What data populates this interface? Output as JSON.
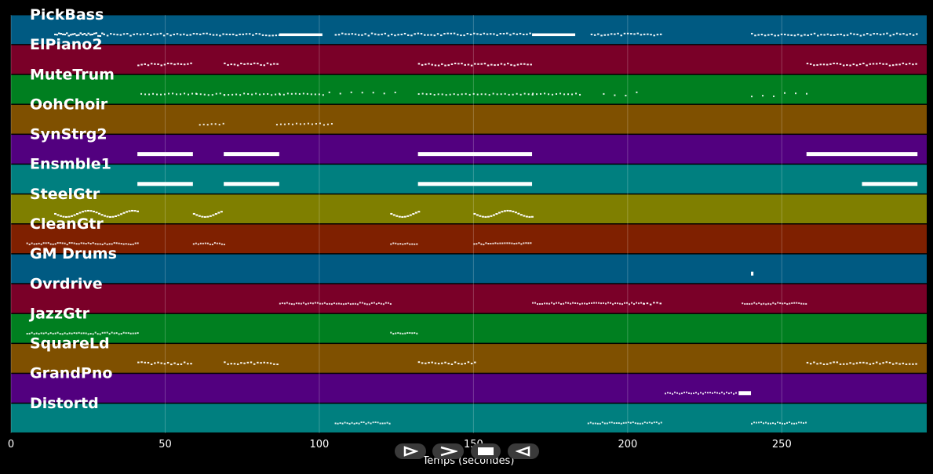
{
  "chart_data": {
    "type": "piano-roll",
    "xlabel": "Temps (secondes)",
    "xlim": [
      0,
      297
    ],
    "xticks": [
      0,
      50,
      100,
      150,
      200,
      250
    ],
    "grid": true,
    "tracks": [
      {
        "name": "PickBass",
        "color": "#005a82",
        "segments": [
          [
            14,
            30,
            "dense"
          ],
          [
            31,
            43,
            "sparse"
          ],
          [
            44,
            60,
            "sparse"
          ],
          [
            60,
            87,
            "sparse"
          ],
          [
            87,
            101,
            "long"
          ],
          [
            105,
            170,
            "sparse"
          ],
          [
            169,
            183,
            "long"
          ],
          [
            188,
            211,
            "sparse"
          ],
          [
            240,
            294,
            "sparse"
          ]
        ]
      },
      {
        "name": "ElPiano2",
        "color": "#7a0028",
        "segments": [
          [
            41,
            59,
            "sparse"
          ],
          [
            69,
            87,
            "sparse"
          ],
          [
            132,
            169,
            "sparse"
          ],
          [
            258,
            294,
            "sparse"
          ]
        ]
      },
      {
        "name": "MuteTrum",
        "color": "#007f20",
        "segments": [
          [
            42,
            60,
            "dots"
          ],
          [
            60,
            69,
            "dots"
          ],
          [
            69,
            87,
            "dots"
          ],
          [
            87,
            102,
            "dots"
          ],
          [
            103,
            125,
            "scatter"
          ],
          [
            132,
            170,
            "dots"
          ],
          [
            169,
            185,
            "dots"
          ],
          [
            192,
            205,
            "scatter"
          ],
          [
            240,
            258,
            "scatter"
          ]
        ]
      },
      {
        "name": "OohChoir",
        "color": "#7f5000",
        "segments": [
          [
            61,
            69,
            "dots"
          ],
          [
            86,
            105,
            "dots"
          ]
        ]
      },
      {
        "name": "SynStrg2",
        "color": "#52007f",
        "segments": [
          [
            41,
            59,
            "block"
          ],
          [
            69,
            87,
            "block"
          ],
          [
            132,
            169,
            "block"
          ],
          [
            258,
            294,
            "block"
          ]
        ]
      },
      {
        "name": "Ensmble1",
        "color": "#007f7f",
        "segments": [
          [
            41,
            59,
            "block"
          ],
          [
            69,
            87,
            "block"
          ],
          [
            132,
            169,
            "block"
          ],
          [
            276,
            294,
            "block"
          ]
        ]
      },
      {
        "name": "SteelGtr",
        "color": "#7f7f00",
        "segments": [
          [
            14,
            41,
            "wave"
          ],
          [
            59,
            68,
            "wave"
          ],
          [
            123,
            132,
            "wave"
          ],
          [
            150,
            169,
            "wave"
          ]
        ]
      },
      {
        "name": "CleanGtr",
        "color": "#7f2000",
        "segments": [
          [
            5,
            41,
            "fine"
          ],
          [
            59,
            69,
            "fine"
          ],
          [
            123,
            132,
            "fine"
          ],
          [
            150,
            169,
            "fine"
          ]
        ]
      },
      {
        "name": "GM Drums",
        "color": "#005a82",
        "segments": [
          [
            240,
            240.8,
            "block"
          ]
        ]
      },
      {
        "name": "Ovrdrive",
        "color": "#7a0028",
        "segments": [
          [
            87,
            123,
            "fine"
          ],
          [
            169,
            205,
            "fine"
          ],
          [
            205,
            211,
            "sparse"
          ],
          [
            237,
            258,
            "fine"
          ]
        ]
      },
      {
        "name": "JazzGtr",
        "color": "#007f20",
        "segments": [
          [
            5,
            41,
            "fine"
          ],
          [
            123,
            132,
            "fine"
          ]
        ]
      },
      {
        "name": "SquareLd",
        "color": "#7f5000",
        "segments": [
          [
            41,
            59,
            "sparse"
          ],
          [
            69,
            87,
            "sparse"
          ],
          [
            132,
            151,
            "sparse"
          ],
          [
            258,
            294,
            "sparse"
          ]
        ]
      },
      {
        "name": "GrandPno",
        "color": "#52007f",
        "segments": [
          [
            212,
            235,
            "fine"
          ],
          [
            236,
            240,
            "block"
          ]
        ]
      },
      {
        "name": "Distortd",
        "color": "#007f7f",
        "segments": [
          [
            105,
            123,
            "fine"
          ],
          [
            187,
            211,
            "fine"
          ],
          [
            240,
            258,
            "fine"
          ]
        ]
      }
    ]
  },
  "controls": [
    {
      "name": "play-forward-button",
      "icon": "play-forward-icon"
    },
    {
      "name": "fast-forward-button",
      "icon": "fast-forward-icon"
    },
    {
      "name": "stop-button",
      "icon": "stop-icon"
    },
    {
      "name": "play-backward-button",
      "icon": "play-backward-icon"
    }
  ]
}
